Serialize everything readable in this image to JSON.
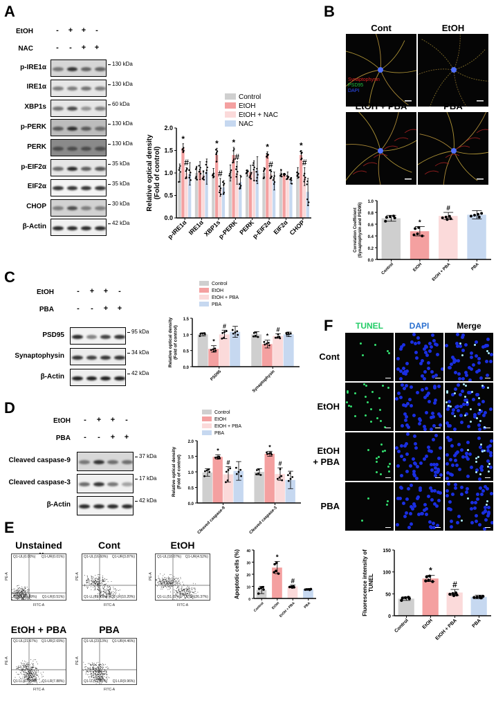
{
  "figure": {
    "panels": [
      "A",
      "B",
      "C",
      "D",
      "E",
      "F"
    ],
    "colors": {
      "control": "#cfcfcf",
      "etoh": "#f4a0a0",
      "etoh_treat": "#fbdada",
      "treat": "#c6d8f0",
      "synaptophysin": "#e02020",
      "psd95": "#20c040",
      "dapi": "#3050ff",
      "tunel": "#22cc66"
    }
  },
  "panelA": {
    "letter": "A",
    "conditions": [
      {
        "label": "EtOH",
        "signs": [
          "-",
          "+",
          "+",
          "-"
        ]
      },
      {
        "label": "NAC",
        "signs": [
          "-",
          "-",
          "+",
          "+"
        ]
      }
    ],
    "blots": [
      {
        "label": "p-IRE1α",
        "kda": "130 kDa"
      },
      {
        "label": "IRE1α",
        "kda": "130 kDa"
      },
      {
        "label": "XBP1s",
        "kda": "60 kDa"
      },
      {
        "label": "p-PERK",
        "kda": "130 kDa"
      },
      {
        "label": "PERK",
        "kda": "130 kDa"
      },
      {
        "label": "p-EIF2α",
        "kda": "35 kDa"
      },
      {
        "label": "EIF2α",
        "kda": "35 kDa"
      },
      {
        "label": "CHOP",
        "kda": "30 kDa"
      },
      {
        "label": "β-Actin",
        "kda": "42 kDa"
      }
    ]
  },
  "panelB": {
    "letter": "B",
    "images": [
      {
        "title": "Cont"
      },
      {
        "title": "EtOH"
      },
      {
        "title": "EtOH + PBA"
      },
      {
        "title": "PBA"
      }
    ],
    "stain_legend": [
      "Synaptophysin",
      "PSD95",
      "DAPI"
    ]
  },
  "panelC": {
    "letter": "C",
    "conditions": [
      {
        "label": "EtOH",
        "signs": [
          "-",
          "+",
          "+",
          "-"
        ]
      },
      {
        "label": "PBA",
        "signs": [
          "-",
          "-",
          "+",
          "+"
        ]
      }
    ],
    "blots": [
      {
        "label": "PSD95",
        "kda": "95 kDa"
      },
      {
        "label": "Synaptophysin",
        "kda": "34 kDa"
      },
      {
        "label": "β-Actin",
        "kda": "42 kDa"
      }
    ]
  },
  "panelD": {
    "letter": "D",
    "conditions": [
      {
        "label": "EtOH",
        "signs": [
          "-",
          "+",
          "+",
          "-"
        ]
      },
      {
        "label": "PBA",
        "signs": [
          "-",
          "-",
          "+",
          "+"
        ]
      }
    ],
    "blots": [
      {
        "label": "Cleaved caspase-9",
        "kda": "37 kDa"
      },
      {
        "label": "Cleaved caspase-3",
        "kda": "17 kDa"
      },
      {
        "label": "β-Actin",
        "kda": "42 kDa"
      }
    ]
  },
  "panelE": {
    "letter": "E",
    "plots": [
      {
        "title": "Unstained cells",
        "UL": "Q1-UL(0.00%)",
        "UR": "Q1-UR(0.01%)",
        "LL": "Q1-LL(99.49%)",
        "LR": "Q1-LR(0.51%)"
      },
      {
        "title": "Cont",
        "UL": "Q1-UL(16.60%)",
        "UR": "Q1-UR(3.87%)",
        "LL": "Q1-LL(69.33%)",
        "LR": "Q1-LR(10.20%)"
      },
      {
        "title": "EtOH",
        "UL": "Q1-UL(18.07%)",
        "UR": "Q1-UR(4.52%)",
        "LL": "Q1-LL(51.02%)",
        "LR": "Q1-LR(26.37%)"
      },
      {
        "title": "EtOH + PBA",
        "UL": "Q1-UL(21.67%)",
        "UR": "Q1-UR(2.69%)",
        "LL": "Q1-LL(67.76%)",
        "LR": "Q1-LR(7.88%)"
      },
      {
        "title": "PBA",
        "UL": "Q1-UL(23.13%)",
        "UR": "Q1-UR(4.46%)",
        "LL": "Q1-LL(62.45%)",
        "LR": "Q1-LR(9.96%)"
      }
    ],
    "x_axis": "FITC-A",
    "y_axis": "PE-A"
  },
  "panelF": {
    "letter": "F",
    "columns": [
      "TUNEL",
      "DAPI",
      "Merge"
    ],
    "rows": [
      "Cont",
      "EtOH",
      "EtOH\n+ PBA",
      "PBA"
    ]
  },
  "chart_data": [
    {
      "id": "A-chart",
      "type": "bar",
      "title": "",
      "categories": [
        "p-IRE1α",
        "IRE1α",
        "XBP1s",
        "p-PERK",
        "PERK",
        "p-EIF2α",
        "EIF2α",
        "CHOP"
      ],
      "series": [
        {
          "name": "Control",
          "values": [
            1.0,
            1.0,
            1.0,
            1.0,
            1.0,
            1.0,
            1.0,
            1.0
          ],
          "errors": [
            0.2,
            0.15,
            0.1,
            0.18,
            0.07,
            0.12,
            0.08,
            0.12
          ]
        },
        {
          "name": "EtOH",
          "values": [
            1.55,
            1.05,
            1.4,
            1.4,
            1.02,
            1.4,
            0.96,
            1.4
          ],
          "errors": [
            0.1,
            0.2,
            0.15,
            0.17,
            0.15,
            0.07,
            0.03,
            0.1
          ]
        },
        {
          "name": "EtOH + NAC",
          "values": [
            1.0,
            0.95,
            0.68,
            1.0,
            1.05,
            0.98,
            0.94,
            0.92
          ],
          "errors": [
            0.12,
            0.1,
            0.2,
            0.25,
            0.22,
            0.1,
            0.08,
            0.2
          ]
        },
        {
          "name": "NAC",
          "values": [
            0.98,
            1.03,
            0.68,
            0.8,
            1.06,
            0.82,
            0.83,
            0.58
          ],
          "errors": [
            0.25,
            0.28,
            0.15,
            0.15,
            0.3,
            0.2,
            0.07,
            0.3
          ]
        }
      ],
      "annotations": {
        "star": [
          "p-IRE1α",
          "XBP1s",
          "p-PERK",
          "p-EIF2α",
          "CHOP"
        ],
        "hash": [
          "p-IRE1α",
          "XBP1s",
          "p-PERK",
          "p-EIF2α",
          "CHOP"
        ]
      },
      "xlabel": "",
      "ylabel": "Relative optical density\n(Fold of control)",
      "yticks": [
        "0.0",
        "0.5",
        "1.0",
        "1.5",
        "2.0"
      ],
      "ylim": [
        0,
        2.0
      ],
      "legend": [
        "Control",
        "EtOH",
        "EtOH + NAC",
        "NAC"
      ],
      "legend_position": "top-right"
    },
    {
      "id": "B-chart",
      "type": "bar",
      "categories": [
        "Control",
        "EtOH",
        "EtOH + PBA",
        "PBA"
      ],
      "values": [
        0.7,
        0.48,
        0.74,
        0.76
      ],
      "errors": [
        0.05,
        0.08,
        0.06,
        0.07
      ],
      "annotations": {
        "star": [
          "EtOH"
        ],
        "hash": [
          "EtOH + PBA"
        ]
      },
      "ylabel": "Correlation Coefficient\n(Synaptophysin and PSD95)",
      "yticks": [
        "0.0",
        "0.2",
        "0.4",
        "0.6",
        "0.8",
        "1.0"
      ],
      "ylim": [
        0,
        1.0
      ]
    },
    {
      "id": "C-chart",
      "type": "bar",
      "categories": [
        "PSD95",
        "Synaptophysin"
      ],
      "series": [
        {
          "name": "Control",
          "values": [
            1.0,
            1.0
          ],
          "errors": [
            0.05,
            0.08
          ]
        },
        {
          "name": "EtOH",
          "values": [
            0.55,
            0.7
          ],
          "errors": [
            0.1,
            0.12
          ]
        },
        {
          "name": "EtOH + PBA",
          "values": [
            1.0,
            0.95
          ],
          "errors": [
            0.13,
            0.07
          ]
        },
        {
          "name": "PBA",
          "values": [
            1.08,
            1.0
          ],
          "errors": [
            0.17,
            0.07
          ]
        }
      ],
      "annotations": {
        "star": [
          "PSD95",
          "Synaptophysin"
        ],
        "hash": [
          "PSD95",
          "Synaptophysin"
        ]
      },
      "ylabel": "Relative optical density\n(Fold of control)",
      "yticks": [
        "0.0",
        "0.5",
        "1.0",
        "1.5"
      ],
      "ylim": [
        0,
        1.5
      ],
      "legend": [
        "Control",
        "EtOH",
        "EtOH + PBA",
        "PBA"
      ]
    },
    {
      "id": "D-chart",
      "type": "bar",
      "categories": [
        "Cleaved caspase-9",
        "Cleaved caspase-3"
      ],
      "series": [
        {
          "name": "Control",
          "values": [
            0.98,
            1.0
          ],
          "errors": [
            0.12,
            0.1
          ]
        },
        {
          "name": "EtOH",
          "values": [
            1.48,
            1.58
          ],
          "errors": [
            0.07,
            0.08
          ]
        },
        {
          "name": "EtOH + PBA",
          "values": [
            0.92,
            0.93
          ],
          "errors": [
            0.25,
            0.2
          ]
        },
        {
          "name": "PBA",
          "values": [
            1.03,
            0.74
          ],
          "errors": [
            0.3,
            0.28
          ]
        }
      ],
      "annotations": {
        "star": [
          "Cleaved caspase-9",
          "Cleaved caspase-3"
        ],
        "hash": [
          "Cleaved caspase-9",
          "Cleaved caspase-3"
        ]
      },
      "ylabel": "Relative optical density\n(Fold of control)",
      "yticks": [
        "0.0",
        "0.5",
        "1.0",
        "1.5",
        "2.0"
      ],
      "ylim": [
        0,
        2.0
      ],
      "legend": [
        "Control",
        "EtOH",
        "EtOH + PBA",
        "PBA"
      ]
    },
    {
      "id": "E-chart",
      "type": "bar",
      "categories": [
        "Control",
        "EtOH",
        "EtOH + PBA",
        "PBA"
      ],
      "values": [
        7,
        25.5,
        10,
        7.5
      ],
      "errors": [
        3,
        5,
        1,
        0.7
      ],
      "annotations": {
        "star": [
          "EtOH"
        ],
        "hash": [
          "EtOH + PBA"
        ]
      },
      "ylabel": "Apoptotic cells (%)",
      "yticks": [
        "0",
        "10",
        "20",
        "30",
        "40"
      ],
      "ylim": [
        0,
        40
      ]
    },
    {
      "id": "F-chart",
      "type": "bar",
      "categories": [
        "Control",
        "EtOH",
        "EtOH + PBA",
        "PBA"
      ],
      "values": [
        39,
        85,
        53,
        43
      ],
      "errors": [
        4,
        7,
        7,
        4
      ],
      "annotations": {
        "star": [
          "EtOH"
        ],
        "hash": [
          "EtOH + PBA"
        ]
      },
      "ylabel": "Fluorescence intensity of\nTUNEL",
      "yticks": [
        "0",
        "50",
        "100",
        "150"
      ],
      "ylim": [
        0,
        150
      ]
    }
  ]
}
